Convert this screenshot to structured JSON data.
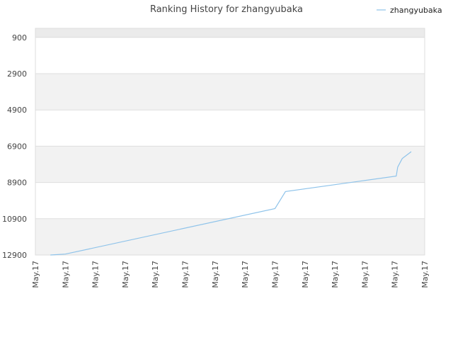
{
  "chart_data": {
    "type": "line",
    "title": "Ranking History for zhangyubaka",
    "xlabel": "",
    "ylabel": "",
    "y_reversed": true,
    "ylim": [
      400,
      12900
    ],
    "y_ticks": [
      900,
      2900,
      4900,
      6900,
      8900,
      10900,
      12900
    ],
    "x_tick_labels": [
      "May.17",
      "May.17",
      "May.17",
      "May.17",
      "May.17",
      "May.17",
      "May.17",
      "May.17",
      "May.17",
      "May.17",
      "May.17",
      "May.17",
      "May.17",
      "May.17"
    ],
    "grid": true,
    "legend_position": "top-right",
    "series": [
      {
        "name": "zhangyubaka",
        "color": "#8ec3ea",
        "x": [
          0.5,
          1.0,
          8.0,
          8.35,
          12.05,
          12.1,
          12.25,
          12.55
        ],
        "y": [
          12900,
          12850,
          10340,
          9400,
          8550,
          8050,
          7580,
          7200
        ]
      }
    ]
  },
  "colors": {
    "band_light": "#f2f2f2",
    "band_top": "#ebebeb",
    "grid": "#dddddd",
    "line": "#8ec3ea"
  }
}
